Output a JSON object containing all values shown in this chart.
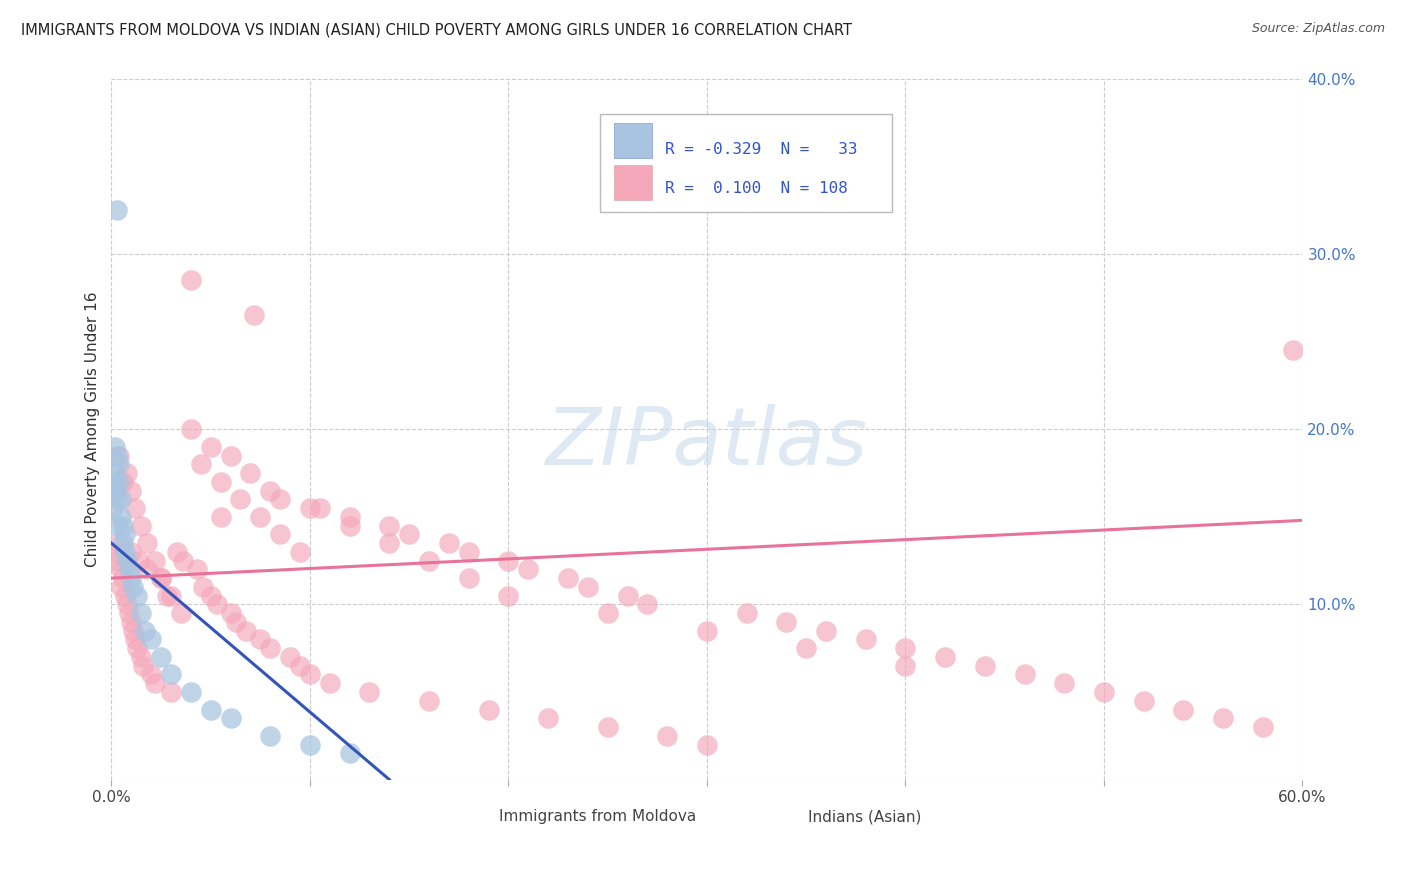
{
  "title": "IMMIGRANTS FROM MOLDOVA VS INDIAN (ASIAN) CHILD POVERTY AMONG GIRLS UNDER 16 CORRELATION CHART",
  "source": "Source: ZipAtlas.com",
  "ylabel": "Child Poverty Among Girls Under 16",
  "xlim": [
    0.0,
    0.6
  ],
  "ylim": [
    0.0,
    0.4
  ],
  "xtick_vals": [
    0.0,
    0.1,
    0.2,
    0.3,
    0.4,
    0.5,
    0.6
  ],
  "ytick_vals": [
    0.0,
    0.1,
    0.2,
    0.3,
    0.4
  ],
  "color_moldova": "#a8c4e0",
  "color_indian": "#f4a7b9",
  "color_moldova_line": "#3355bb",
  "color_indian_line": "#e8729a",
  "watermark_color": "#c5d8ea",
  "legend_text_color": "#3355cc",
  "moldova_x": [
    0.001,
    0.001,
    0.002,
    0.002,
    0.002,
    0.003,
    0.003,
    0.003,
    0.004,
    0.004,
    0.005,
    0.005,
    0.006,
    0.006,
    0.007,
    0.007,
    0.008,
    0.009,
    0.01,
    0.011,
    0.013,
    0.015,
    0.017,
    0.02,
    0.025,
    0.03,
    0.04,
    0.05,
    0.06,
    0.08,
    0.1,
    0.12,
    0.003
  ],
  "moldova_y": [
    0.17,
    0.155,
    0.19,
    0.175,
    0.165,
    0.185,
    0.16,
    0.145,
    0.18,
    0.17,
    0.16,
    0.15,
    0.145,
    0.135,
    0.14,
    0.13,
    0.125,
    0.12,
    0.115,
    0.11,
    0.105,
    0.095,
    0.085,
    0.08,
    0.07,
    0.06,
    0.05,
    0.04,
    0.035,
    0.025,
    0.02,
    0.015,
    0.325
  ],
  "indian_x": [
    0.002,
    0.003,
    0.004,
    0.005,
    0.005,
    0.006,
    0.007,
    0.008,
    0.009,
    0.01,
    0.01,
    0.011,
    0.012,
    0.013,
    0.014,
    0.015,
    0.016,
    0.018,
    0.02,
    0.022,
    0.025,
    0.028,
    0.03,
    0.033,
    0.036,
    0.04,
    0.043,
    0.046,
    0.05,
    0.053,
    0.055,
    0.06,
    0.063,
    0.068,
    0.072,
    0.075,
    0.08,
    0.085,
    0.09,
    0.095,
    0.1,
    0.105,
    0.11,
    0.12,
    0.13,
    0.14,
    0.15,
    0.16,
    0.17,
    0.18,
    0.19,
    0.2,
    0.21,
    0.22,
    0.23,
    0.24,
    0.25,
    0.26,
    0.27,
    0.28,
    0.3,
    0.32,
    0.34,
    0.36,
    0.38,
    0.4,
    0.42,
    0.44,
    0.46,
    0.48,
    0.5,
    0.52,
    0.54,
    0.56,
    0.58,
    0.595,
    0.004,
    0.006,
    0.008,
    0.01,
    0.012,
    0.015,
    0.018,
    0.022,
    0.025,
    0.03,
    0.035,
    0.04,
    0.05,
    0.06,
    0.07,
    0.08,
    0.1,
    0.12,
    0.14,
    0.16,
    0.18,
    0.2,
    0.25,
    0.3,
    0.35,
    0.4,
    0.045,
    0.055,
    0.065,
    0.075,
    0.085,
    0.095
  ],
  "indian_y": [
    0.13,
    0.125,
    0.135,
    0.12,
    0.11,
    0.115,
    0.105,
    0.1,
    0.095,
    0.09,
    0.13,
    0.085,
    0.08,
    0.075,
    0.125,
    0.07,
    0.065,
    0.12,
    0.06,
    0.055,
    0.115,
    0.105,
    0.05,
    0.13,
    0.125,
    0.285,
    0.12,
    0.11,
    0.105,
    0.1,
    0.15,
    0.095,
    0.09,
    0.085,
    0.265,
    0.08,
    0.075,
    0.16,
    0.07,
    0.065,
    0.06,
    0.155,
    0.055,
    0.15,
    0.05,
    0.145,
    0.14,
    0.045,
    0.135,
    0.13,
    0.04,
    0.125,
    0.12,
    0.035,
    0.115,
    0.11,
    0.03,
    0.105,
    0.1,
    0.025,
    0.02,
    0.095,
    0.09,
    0.085,
    0.08,
    0.075,
    0.07,
    0.065,
    0.06,
    0.055,
    0.05,
    0.045,
    0.04,
    0.035,
    0.03,
    0.245,
    0.185,
    0.17,
    0.175,
    0.165,
    0.155,
    0.145,
    0.135,
    0.125,
    0.115,
    0.105,
    0.095,
    0.2,
    0.19,
    0.185,
    0.175,
    0.165,
    0.155,
    0.145,
    0.135,
    0.125,
    0.115,
    0.105,
    0.095,
    0.085,
    0.075,
    0.065,
    0.18,
    0.17,
    0.16,
    0.15,
    0.14,
    0.13
  ],
  "mol_line_x": [
    0.0,
    0.14
  ],
  "mol_line_y_start": 0.135,
  "mol_line_y_end": 0.0,
  "ind_line_x": [
    0.0,
    0.6
  ],
  "ind_line_y_start": 0.115,
  "ind_line_y_end": 0.148
}
